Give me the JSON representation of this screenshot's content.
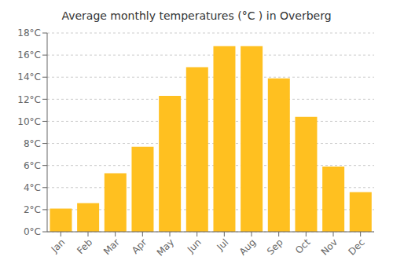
{
  "chart_data": {
    "type": "bar",
    "title": "Average monthly temperatures (°C ) in Overberg",
    "categories": [
      "Jan",
      "Feb",
      "Mar",
      "Apr",
      "May",
      "Jun",
      "Jul",
      "Aug",
      "Sep",
      "Oct",
      "Nov",
      "Dec"
    ],
    "values": [
      2.1,
      2.6,
      5.3,
      7.7,
      12.3,
      14.9,
      16.8,
      16.8,
      13.9,
      10.4,
      5.9,
      3.6
    ],
    "color": "#FFC020",
    "ylim": [
      0,
      18
    ],
    "yticks": [
      {
        "value": 0,
        "label": "0°C"
      },
      {
        "value": 2,
        "label": "2°C"
      },
      {
        "value": 4,
        "label": "4°C"
      },
      {
        "value": 6,
        "label": "6°C"
      },
      {
        "value": 8,
        "label": "8°C"
      },
      {
        "value": 10,
        "label": "10°C"
      },
      {
        "value": 12,
        "label": "12°C"
      },
      {
        "value": 14,
        "label": "14°C"
      },
      {
        "value": 16,
        "label": "16°C"
      },
      {
        "value": 18,
        "label": "18°C"
      }
    ],
    "grid": true
  }
}
